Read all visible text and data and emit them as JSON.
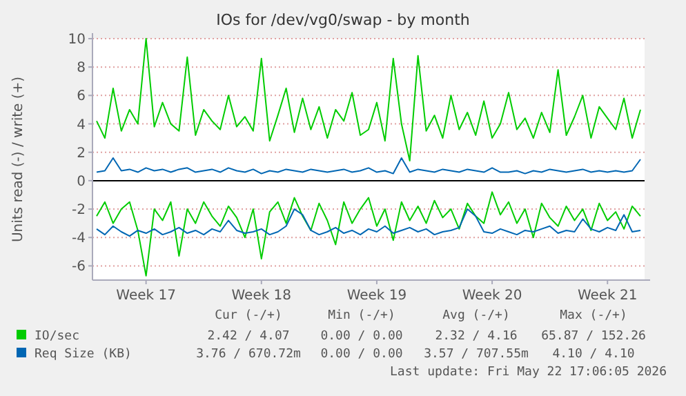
{
  "chart_data": {
    "type": "line",
    "title": "IOs for /dev/vg0/swap - by month",
    "ylabel": "Units read (-) / write (+)",
    "categories": [
      null,
      null,
      null,
      null,
      null,
      null,
      "Week 17",
      null,
      null,
      null,
      null,
      null,
      null,
      null,
      null,
      null,
      null,
      null,
      null,
      null,
      "Week 18",
      null,
      null,
      null,
      null,
      null,
      null,
      null,
      null,
      null,
      null,
      null,
      null,
      null,
      "Week 19",
      null,
      null,
      null,
      null,
      null,
      null,
      null,
      null,
      null,
      null,
      null,
      null,
      null,
      "Week 20",
      null,
      null,
      null,
      null,
      null,
      null,
      null,
      null,
      null,
      null,
      null,
      null,
      null,
      "Week 21",
      null,
      null,
      null,
      null
    ],
    "ylim": [
      -7,
      10
    ],
    "yticks": [
      -6,
      -4,
      -2,
      0,
      2,
      4,
      6,
      8,
      10
    ],
    "grid": "y",
    "legend": "bottom",
    "line_style": "solid",
    "marker": "none",
    "ref_lines": [
      {
        "axis": "y",
        "value": 0,
        "color": "#000000"
      }
    ],
    "series": [
      {
        "name": "IO/sec",
        "color": "#00cc00",
        "values": [
          4.2,
          3.0,
          6.5,
          3.5,
          5.0,
          4.0,
          10.0,
          3.8,
          5.5,
          4.0,
          3.5,
          8.7,
          3.2,
          5.0,
          4.2,
          3.6,
          6.0,
          3.8,
          4.5,
          3.5,
          8.6,
          2.8,
          4.6,
          6.5,
          3.4,
          5.8,
          3.6,
          5.2,
          3.0,
          5.0,
          4.2,
          6.2,
          3.2,
          3.6,
          5.5,
          2.8,
          8.6,
          4.0,
          1.4,
          8.8,
          3.5,
          4.6,
          3.0,
          6.0,
          3.6,
          4.8,
          3.2,
          5.6,
          3.0,
          4.0,
          6.2,
          3.6,
          4.4,
          3.0,
          4.8,
          3.4,
          7.8,
          3.2,
          4.5,
          6.0,
          3.0,
          5.2,
          4.4,
          3.6,
          5.8,
          3.0,
          5.0
        ]
      },
      {
        "color": "#00cc00",
        "values": [
          -2.5,
          -1.5,
          -3.0,
          -2.0,
          -1.5,
          -3.5,
          -6.7,
          -2.0,
          -2.8,
          -1.5,
          -5.3,
          -2.0,
          -3.0,
          -1.5,
          -2.5,
          -3.2,
          -1.8,
          -2.6,
          -4.0,
          -2.0,
          -5.5,
          -2.2,
          -1.5,
          -3.0,
          -1.2,
          -2.5,
          -3.5,
          -1.6,
          -2.8,
          -4.5,
          -1.5,
          -3.0,
          -2.0,
          -1.2,
          -3.2,
          -2.0,
          -4.2,
          -1.5,
          -2.8,
          -1.8,
          -3.0,
          -1.4,
          -2.6,
          -2.0,
          -3.4,
          -1.6,
          -2.5,
          -3.0,
          -0.8,
          -2.4,
          -1.5,
          -3.0,
          -2.0,
          -4.0,
          -1.6,
          -2.6,
          -3.2,
          -1.8,
          -2.8,
          -2.0,
          -3.5,
          -1.6,
          -2.8,
          -2.2,
          -3.4,
          -1.8,
          -2.5
        ]
      },
      {
        "name": "Req Size (KB)",
        "color": "#0066b3",
        "values": [
          0.6,
          0.7,
          1.6,
          0.7,
          0.8,
          0.6,
          0.9,
          0.7,
          0.8,
          0.6,
          0.8,
          0.9,
          0.6,
          0.7,
          0.8,
          0.6,
          0.9,
          0.7,
          0.6,
          0.8,
          0.5,
          0.7,
          0.6,
          0.8,
          0.7,
          0.6,
          0.8,
          0.7,
          0.6,
          0.7,
          0.8,
          0.6,
          0.7,
          0.9,
          0.6,
          0.7,
          0.5,
          1.6,
          0.6,
          0.8,
          0.7,
          0.6,
          0.8,
          0.7,
          0.6,
          0.8,
          0.7,
          0.6,
          0.9,
          0.6,
          0.6,
          0.7,
          0.5,
          0.7,
          0.6,
          0.8,
          0.7,
          0.6,
          0.7,
          0.8,
          0.6,
          0.7,
          0.6,
          0.7,
          0.6,
          0.7,
          1.5
        ]
      },
      {
        "color": "#0066b3",
        "values": [
          -3.4,
          -3.8,
          -3.2,
          -3.6,
          -3.9,
          -3.5,
          -3.7,
          -3.4,
          -3.8,
          -3.6,
          -3.3,
          -3.7,
          -3.5,
          -3.8,
          -3.4,
          -3.6,
          -2.8,
          -3.5,
          -3.7,
          -3.6,
          -3.4,
          -3.8,
          -3.6,
          -3.2,
          -2.0,
          -2.4,
          -3.5,
          -3.8,
          -3.6,
          -3.3,
          -3.7,
          -3.5,
          -3.8,
          -3.4,
          -3.6,
          -3.2,
          -3.7,
          -3.5,
          -3.3,
          -3.6,
          -3.4,
          -3.8,
          -3.6,
          -3.5,
          -3.3,
          -2.0,
          -2.5,
          -3.6,
          -3.7,
          -3.4,
          -3.6,
          -3.8,
          -3.5,
          -3.6,
          -3.4,
          -3.2,
          -3.7,
          -3.5,
          -3.6,
          -2.7,
          -3.4,
          -3.6,
          -3.3,
          -3.5,
          -2.4,
          -3.6,
          -3.5
        ]
      }
    ],
    "annotations": [
      "Cur (-/+)",
      "Min (-/+)",
      "Avg (-/+)",
      "Max (-/+)",
      "2.42 / 4.07",
      "0.00 / 0.00",
      "2.32 / 4.16",
      "65.87 / 152.26",
      "3.76 / 670.72m",
      "0.00 / 0.00",
      "3.57 / 707.55m",
      "4.10 / 4.10",
      "Last update: Fri May 22 17:06:05 2026"
    ]
  }
}
